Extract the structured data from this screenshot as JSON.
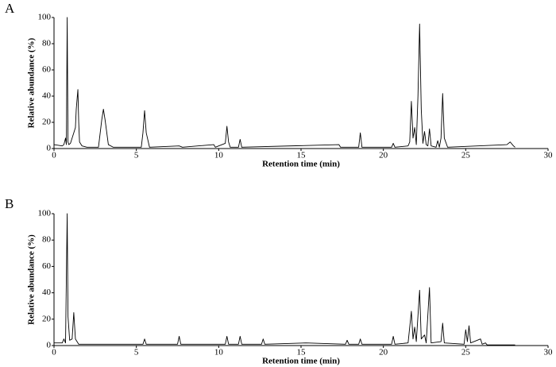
{
  "chart_data": [
    {
      "type": "line",
      "panel_label": "A",
      "xlabel": "Retention time (min)",
      "ylabel": "Relative abundance (%)",
      "xlim": [
        0,
        30
      ],
      "ylim": [
        0,
        100
      ],
      "xticks": [
        0,
        5,
        10,
        15,
        20,
        25,
        30
      ],
      "yticks": [
        0,
        20,
        40,
        60,
        80,
        100
      ],
      "color": "#000000",
      "x": [
        0,
        0.5,
        0.6,
        0.7,
        0.75,
        0.8,
        0.85,
        0.9,
        1.0,
        1.2,
        1.3,
        1.35,
        1.45,
        1.5,
        1.55,
        1.7,
        2.0,
        2.7,
        2.9,
        3.0,
        3.1,
        3.3,
        3.6,
        5.3,
        5.4,
        5.5,
        5.6,
        5.8,
        7.6,
        7.8,
        9.7,
        9.8,
        10.4,
        10.5,
        10.6,
        10.7,
        11.2,
        11.3,
        11.4,
        17.3,
        17.4,
        18.5,
        18.6,
        18.7,
        20.5,
        20.6,
        20.7,
        21.5,
        21.6,
        21.7,
        21.8,
        21.9,
        22.0,
        22.1,
        22.2,
        22.3,
        22.4,
        22.5,
        22.6,
        22.7,
        22.8,
        22.9,
        23.2,
        23.3,
        23.4,
        23.5,
        23.6,
        23.7,
        23.9,
        27.5,
        27.7,
        27.9,
        28
      ],
      "values": [
        3,
        2,
        3,
        8,
        3,
        100,
        5,
        3,
        4,
        12,
        16,
        30,
        45,
        20,
        5,
        2,
        1,
        1,
        22,
        30,
        22,
        3,
        1,
        1,
        12,
        29,
        12,
        1,
        2,
        1,
        3,
        1,
        4,
        17,
        5,
        1,
        1,
        7,
        1,
        3,
        1,
        1,
        12,
        1,
        1,
        4,
        1,
        2,
        5,
        36,
        8,
        16,
        3,
        40,
        95,
        30,
        4,
        13,
        3,
        2,
        15,
        2,
        1,
        6,
        1,
        8,
        42,
        8,
        1,
        3,
        5,
        2,
        1
      ]
    },
    {
      "type": "line",
      "panel_label": "B",
      "xlabel": "Retention time (min)",
      "ylabel": "Relative abundance (%)",
      "xlim": [
        0,
        30
      ],
      "ylim": [
        0,
        100
      ],
      "xticks": [
        0,
        5,
        10,
        15,
        20,
        25,
        30
      ],
      "yticks": [
        0,
        20,
        40,
        60,
        80,
        100
      ],
      "color": "#000000",
      "x": [
        0,
        0.5,
        0.6,
        0.7,
        0.8,
        0.85,
        0.95,
        1.1,
        1.2,
        1.3,
        1.5,
        5.4,
        5.5,
        5.6,
        7.5,
        7.6,
        7.7,
        10.4,
        10.5,
        10.6,
        11.2,
        11.3,
        11.4,
        12.6,
        12.7,
        12.8,
        15.3,
        17.7,
        17.8,
        17.9,
        18.5,
        18.6,
        18.7,
        20.5,
        20.6,
        20.7,
        21.5,
        21.7,
        21.8,
        21.9,
        22.0,
        22.2,
        22.3,
        22.5,
        22.6,
        22.8,
        22.9,
        23.5,
        23.6,
        23.7,
        24.9,
        25.0,
        25.1,
        25.2,
        25.3,
        25.9,
        26.0,
        26.2,
        26.3,
        28
      ],
      "values": [
        2,
        2,
        5,
        2,
        100,
        22,
        4,
        5,
        25,
        5,
        1,
        1,
        5,
        1,
        1,
        7,
        1,
        1,
        7,
        1,
        1,
        7,
        1,
        1,
        5,
        1,
        2,
        1,
        4,
        1,
        1,
        5,
        1,
        1,
        7,
        1,
        2,
        26,
        5,
        14,
        3,
        42,
        5,
        8,
        2,
        44,
        2,
        3,
        17,
        2,
        1,
        12,
        3,
        15,
        2,
        5,
        1,
        2,
        0.5,
        0.5
      ]
    }
  ]
}
